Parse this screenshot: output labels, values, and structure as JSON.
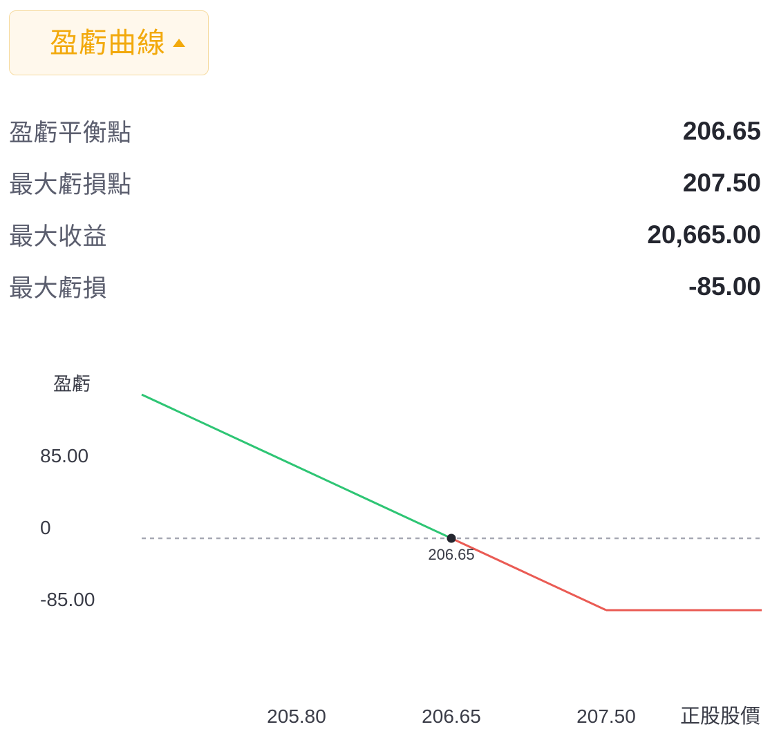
{
  "toggle": {
    "label": "盈虧曲線",
    "caret_icon": "caret-up-icon",
    "text_color": "#f2a90c",
    "background": "#fff8ec"
  },
  "stats": [
    {
      "label": "盈虧平衡點",
      "value": "206.65"
    },
    {
      "label": "最大虧損點",
      "value": "207.50"
    },
    {
      "label": "最大收益",
      "value": "20,665.00"
    },
    {
      "label": "最大虧損",
      "value": "-85.00"
    }
  ],
  "chart_data": {
    "type": "line",
    "ylabel": "盈虧",
    "xlabel": "正股股價",
    "x_ticks": [
      "205.80",
      "206.65",
      "207.50"
    ],
    "y_ticks": [
      "85.00",
      "0",
      "-85.00"
    ],
    "profit_color": "#2ec574",
    "loss_color": "#ea5b54",
    "zero_line": "dashed",
    "grid": false,
    "series": [
      {
        "values": [
          {
            "x": 205.8,
            "y": 85
          },
          {
            "x": 206.65,
            "y": 0
          },
          {
            "x": 207.5,
            "y": -85
          },
          {
            "x": 207.5,
            "y": -85
          }
        ]
      }
    ],
    "breakeven": {
      "x": 206.65,
      "y": 0,
      "label": "206.65"
    },
    "max_loss": -85
  }
}
